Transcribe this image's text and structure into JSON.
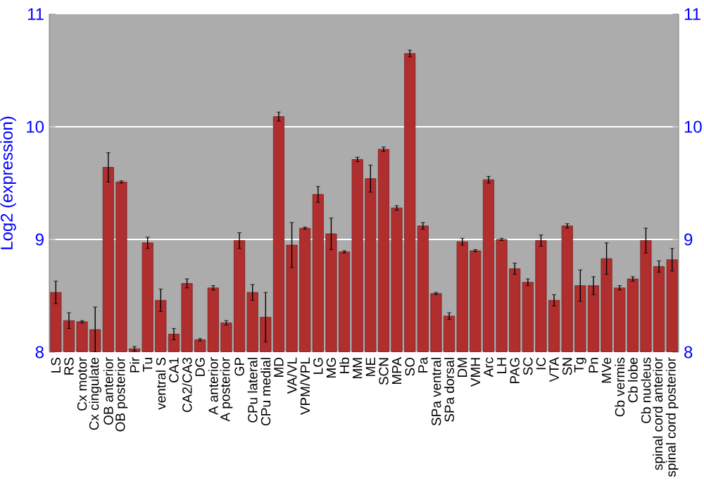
{
  "chart_data": {
    "type": "bar",
    "ylabel": "Log2 (expression)",
    "categories": [
      "LS",
      "RS",
      "Cx motor",
      "Cx cingulate",
      "OB anterior",
      "OB posterior",
      "Pir",
      "Tu",
      "ventral S",
      "CA1",
      "CA2/CA3",
      "DG",
      "A anterior",
      "A posterior",
      "GP",
      "CPu lateral",
      "CPu medial",
      "MD",
      "VA/VL",
      "VPM/VPL",
      "LG",
      "MG",
      "Hb",
      "MM",
      "ME",
      "SCN",
      "MPA",
      "SO",
      "Pa",
      "SPa ventral",
      "SPa dorsal",
      "DM",
      "VMH",
      "Arc",
      "LH",
      "PAG",
      "SC",
      "IC",
      "VTA",
      "SN",
      "Tg",
      "Pn",
      "MVe",
      "Cb vermis",
      "Cb lobe",
      "Cb nucleus",
      "spinal cord anterior",
      "spinal cord posterior"
    ],
    "values": [
      8.53,
      8.28,
      8.27,
      8.2,
      9.64,
      9.51,
      8.03,
      8.97,
      8.46,
      8.16,
      8.61,
      8.11,
      8.57,
      8.26,
      8.99,
      8.53,
      8.31,
      10.09,
      8.95,
      9.1,
      9.4,
      9.05,
      8.89,
      9.71,
      9.54,
      9.8,
      9.28,
      10.65,
      9.12,
      8.52,
      8.32,
      8.98,
      8.9,
      9.53,
      9.0,
      8.74,
      8.62,
      8.99,
      8.46,
      9.12,
      8.59,
      8.59,
      8.83,
      8.57,
      8.65,
      8.99,
      8.76,
      8.82
    ],
    "errors": [
      0.1,
      0.07,
      0.01,
      0.2,
      0.13,
      0.01,
      0.02,
      0.05,
      0.1,
      0.05,
      0.04,
      0.01,
      0.02,
      0.02,
      0.07,
      0.07,
      0.22,
      0.04,
      0.2,
      0.01,
      0.07,
      0.14,
      0.01,
      0.02,
      0.12,
      0.02,
      0.02,
      0.03,
      0.03,
      0.01,
      0.03,
      0.03,
      0.01,
      0.03,
      0.01,
      0.05,
      0.03,
      0.05,
      0.05,
      0.02,
      0.14,
      0.08,
      0.14,
      0.02,
      0.02,
      0.11,
      0.05,
      0.1
    ],
    "color": "#b02e2e",
    "ylim": [
      8,
      11
    ],
    "yticks": [
      8,
      9,
      10,
      11
    ],
    "y2lim": [
      8,
      11
    ],
    "y2ticks": [
      8,
      9,
      10,
      11
    ],
    "grid": "y"
  }
}
